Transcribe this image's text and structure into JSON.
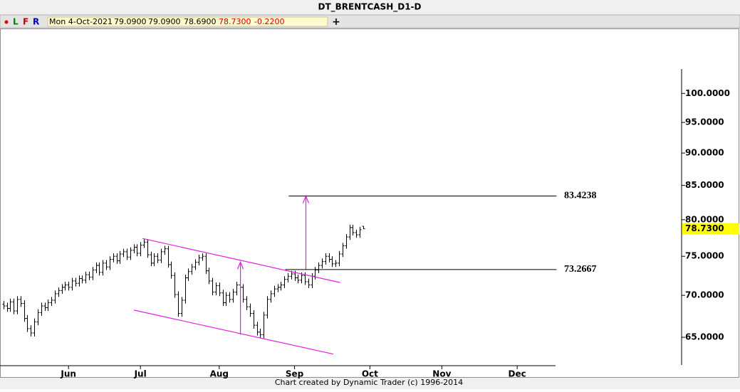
{
  "chart_data": {
    "type": "ohlc",
    "title": "DT_BRENTCASH_D1-D",
    "log_y": true,
    "ylim": [
      61.9,
      104.4
    ],
    "yticks": [
      {
        "value": 65,
        "label": "65.0000"
      },
      {
        "value": 70,
        "label": "70.0000"
      },
      {
        "value": 75,
        "label": "75.0000"
      },
      {
        "value": 80,
        "label": "80.0000"
      },
      {
        "value": 85,
        "label": "85.0000"
      },
      {
        "value": 90,
        "label": "90.0000"
      },
      {
        "value": 95,
        "label": "95.0000"
      },
      {
        "value": 100,
        "label": "100.0000"
      }
    ],
    "xlim": [
      -1,
      198
    ],
    "xticks": [
      {
        "value": 19,
        "label": "Jun"
      },
      {
        "value": 40,
        "label": "Jul"
      },
      {
        "value": 63,
        "label": "Aug"
      },
      {
        "value": 85,
        "label": "Sep"
      },
      {
        "value": 107,
        "label": "Oct"
      },
      {
        "value": 128,
        "label": "Nov"
      },
      {
        "value": 150,
        "label": "Dec"
      }
    ],
    "color": "#000000",
    "open": [
      68.9,
      68.7,
      68.4,
      69.2,
      68.1,
      69.5,
      69.0,
      67.2,
      66.0,
      65.5,
      66.8,
      67.9,
      68.7,
      68.5,
      69.1,
      69.4,
      70.2,
      70.6,
      71.0,
      71.3,
      71.0,
      71.8,
      71.5,
      72.1,
      71.9,
      72.6,
      72.3,
      73.2,
      73.8,
      72.9,
      74.1,
      73.6,
      74.6,
      75.0,
      74.4,
      75.3,
      75.6,
      74.9,
      75.8,
      76.2,
      75.4,
      76.5,
      76.9,
      75.2,
      74.1,
      75.0,
      74.5,
      75.6,
      76.0,
      73.9,
      72.5,
      70.1,
      67.8,
      69.4,
      72.2,
      73.0,
      73.6,
      74.2,
      74.8,
      75.0,
      73.1,
      71.8,
      70.4,
      71.2,
      70.3,
      69.1,
      70.0,
      69.5,
      70.4,
      71.3,
      71.0,
      69.5,
      68.6,
      67.8,
      66.4,
      65.6,
      65.3,
      67.6,
      69.5,
      70.2,
      70.8,
      71.0,
      71.3,
      72.0,
      72.4,
      72.7,
      72.2,
      71.9,
      72.5,
      71.7,
      71.3,
      72.4,
      73.2,
      73.8,
      74.3,
      75.0,
      74.6,
      74.0,
      74.1,
      75.3,
      76.4,
      77.6,
      78.9,
      78.2,
      77.9,
      79.09
    ],
    "high": [
      69.3,
      69.1,
      69.6,
      69.6,
      69.9,
      69.9,
      69.4,
      67.6,
      66.4,
      67.2,
      68.3,
      69.1,
      69.1,
      69.5,
      69.8,
      70.6,
      71.0,
      71.4,
      71.7,
      71.7,
      72.2,
      72.2,
      72.5,
      72.5,
      73.0,
      73.0,
      73.6,
      74.2,
      74.2,
      74.5,
      74.5,
      75.0,
      75.4,
      75.4,
      75.7,
      76.0,
      76.0,
      76.2,
      76.6,
      76.6,
      76.9,
      77.3,
      77.3,
      75.6,
      75.4,
      75.4,
      76.0,
      76.4,
      76.4,
      74.3,
      72.9,
      70.5,
      69.8,
      72.6,
      73.4,
      74.0,
      74.6,
      75.2,
      75.4,
      75.4,
      73.5,
      72.2,
      71.6,
      71.6,
      70.7,
      70.4,
      70.4,
      70.8,
      71.7,
      71.7,
      71.4,
      69.9,
      69.0,
      68.2,
      66.8,
      66.0,
      68.0,
      69.9,
      70.6,
      71.2,
      71.4,
      71.7,
      72.4,
      72.8,
      73.1,
      73.1,
      72.6,
      72.9,
      72.9,
      72.1,
      72.8,
      73.6,
      74.2,
      74.7,
      75.4,
      75.4,
      75.0,
      74.5,
      75.7,
      76.8,
      78.0,
      79.3,
      79.3,
      78.6,
      79.0,
      79.09
    ],
    "low": [
      68.3,
      68.0,
      68.0,
      67.7,
      67.7,
      68.6,
      66.8,
      65.6,
      65.1,
      65.1,
      66.4,
      67.5,
      68.1,
      68.1,
      68.7,
      69.0,
      69.8,
      70.2,
      70.6,
      70.6,
      70.6,
      71.1,
      71.1,
      71.5,
      71.5,
      71.9,
      71.9,
      72.8,
      72.5,
      72.5,
      73.2,
      73.2,
      74.2,
      74.0,
      74.0,
      74.9,
      74.5,
      74.5,
      75.4,
      75.0,
      75.0,
      76.1,
      74.8,
      73.7,
      73.7,
      74.1,
      74.1,
      75.2,
      73.5,
      72.1,
      69.7,
      67.4,
      67.4,
      69.0,
      71.8,
      72.6,
      73.2,
      73.8,
      74.4,
      72.7,
      71.4,
      70.0,
      70.0,
      69.9,
      68.7,
      68.7,
      69.1,
      69.1,
      70.0,
      70.6,
      69.1,
      68.2,
      67.4,
      66.0,
      65.2,
      64.9,
      64.9,
      67.2,
      69.1,
      69.8,
      70.4,
      70.6,
      70.9,
      71.6,
      72.0,
      71.8,
      71.5,
      71.5,
      71.3,
      70.9,
      70.9,
      72.0,
      72.8,
      73.4,
      73.9,
      74.2,
      73.6,
      73.6,
      73.7,
      74.9,
      76.0,
      77.2,
      77.8,
      77.5,
      77.5,
      78.69
    ],
    "close": [
      68.7,
      68.4,
      69.2,
      68.1,
      69.5,
      69.0,
      67.2,
      66.0,
      65.5,
      66.8,
      67.9,
      68.7,
      68.5,
      69.1,
      69.4,
      70.2,
      70.6,
      71.0,
      71.3,
      71.0,
      71.8,
      71.5,
      72.1,
      71.9,
      72.6,
      72.3,
      73.2,
      73.8,
      72.9,
      74.1,
      73.6,
      74.6,
      75.0,
      74.4,
      75.3,
      75.6,
      74.9,
      75.8,
      76.2,
      75.4,
      76.5,
      76.9,
      75.2,
      74.1,
      75.0,
      74.5,
      75.6,
      76.0,
      73.9,
      72.5,
      70.1,
      67.8,
      69.4,
      72.2,
      73.0,
      73.6,
      74.2,
      74.8,
      75.0,
      73.1,
      71.8,
      70.4,
      71.2,
      70.3,
      69.1,
      70.0,
      69.5,
      70.4,
      71.3,
      71.0,
      69.5,
      68.6,
      67.8,
      66.4,
      65.6,
      65.3,
      67.6,
      69.5,
      70.2,
      70.8,
      71.0,
      71.3,
      72.0,
      72.4,
      72.7,
      72.2,
      71.9,
      72.5,
      71.7,
      71.3,
      72.4,
      73.2,
      73.8,
      74.3,
      75.0,
      74.6,
      74.0,
      74.1,
      75.3,
      76.4,
      77.6,
      78.9,
      78.2,
      77.9,
      78.6,
      78.73
    ],
    "levels": [
      {
        "value": 83.4238,
        "x": [
          83.3,
          161.5
        ]
      },
      {
        "value": 73.2667,
        "x": [
          82.3,
          161.5
        ]
      }
    ],
    "trendlines": [
      {
        "x": [
          40.6,
          98.3
        ],
        "y": [
          77.4,
          71.6
        ]
      },
      {
        "x": [
          38.1,
          96.3
        ],
        "y": [
          68.2,
          63.1
        ]
      }
    ],
    "arrows": [
      {
        "x": 69.2,
        "y": [
          65.3,
          74.25
        ]
      },
      {
        "x": 88.3,
        "y": [
          73.2,
          83.42
        ]
      }
    ],
    "drawing_color": "#e020e0",
    "last_price_color": "#ffff00"
  },
  "toolbar": {
    "buttons": [
      "L",
      "F",
      "R"
    ],
    "info": [
      "Mon 4-Oct-2021",
      "79.0900",
      "79.0900",
      "78.6900",
      "78.7300",
      "-0.2200"
    ],
    "add": "+"
  },
  "footer": "Chart created by Dynamic Trader  (c) 1996-2014"
}
